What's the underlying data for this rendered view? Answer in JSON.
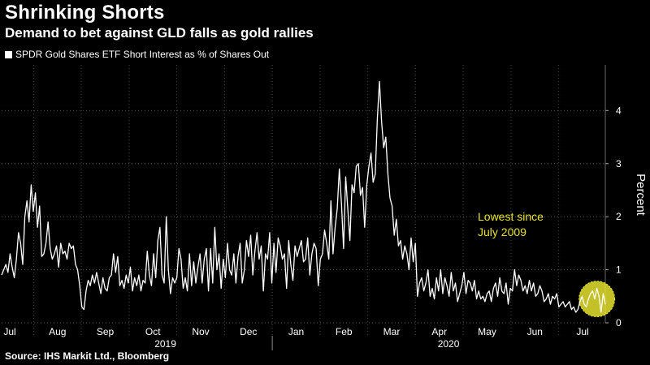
{
  "header": {
    "title": "Shrinking Shorts",
    "subtitle": "Demand to bet against GLD falls as gold rallies"
  },
  "footer": {
    "source": "Source: IHS Markit Ltd., Bloomberg"
  },
  "colors": {
    "background": "#000000",
    "line": "#ffffff",
    "highlight": "#e6e22e"
  },
  "chart_data": {
    "type": "line",
    "title": "Shrinking Shorts",
    "subtitle": "Demand to bet against GLD falls as gold rallies",
    "ylabel": "Percent",
    "xlabel": "",
    "ylim": [
      0,
      4.8
    ],
    "yticks": [
      0,
      1,
      2,
      3,
      4
    ],
    "grid": true,
    "legend_position": "top-left",
    "x_tick_labels": [
      "Jul",
      "Aug",
      "Sep",
      "Oct",
      "Nov",
      "Dec",
      "Jan",
      "Feb",
      "Mar",
      "Apr",
      "May",
      "Jun",
      "Jul"
    ],
    "x_year_labels": [
      "2019",
      "2020"
    ],
    "annotation": "Lowest since\nJuly 2009",
    "annotation_lines": [
      "Lowest since",
      "July 2009"
    ],
    "series": [
      {
        "name": "SPDR Gold Shares ETF Short Interest as % of Shares Out",
        "values": [
          0.9,
          1.0,
          1.1,
          0.95,
          1.3,
          1.05,
          0.85,
          1.2,
          1.7,
          1.5,
          1.1,
          2.0,
          2.3,
          1.9,
          2.6,
          2.1,
          2.45,
          1.8,
          2.2,
          1.25,
          1.3,
          1.5,
          1.9,
          1.4,
          1.2,
          1.3,
          1.45,
          1.05,
          1.5,
          1.3,
          1.35,
          1.2,
          1.5,
          1.4,
          1.45,
          1.1,
          1.0,
          0.7,
          0.3,
          0.25,
          0.6,
          0.8,
          0.7,
          0.9,
          0.75,
          0.95,
          0.75,
          0.55,
          0.85,
          0.65,
          0.6,
          0.85,
          0.9,
          1.3,
          0.95,
          1.25,
          0.7,
          0.8,
          0.65,
          0.9,
          0.75,
          1.05,
          0.6,
          0.85,
          0.7,
          0.9,
          0.6,
          0.8,
          0.75,
          1.35,
          0.9,
          0.7,
          1.3,
          0.85,
          1.55,
          1.8,
          0.9,
          0.75,
          2.0,
          1.0,
          0.55,
          0.85,
          0.75,
          0.85,
          1.4,
          1.2,
          0.65,
          0.85,
          0.6,
          1.3,
          0.7,
          1.15,
          0.75,
          1.05,
          1.3,
          0.75,
          1.2,
          1.4,
          0.6,
          1.4,
          0.75,
          1.8,
          1.0,
          1.3,
          0.65,
          1.2,
          0.85,
          1.5,
          1.0,
          0.9,
          1.3,
          0.75,
          1.25,
          1.5,
          0.75,
          1.0,
          1.55,
          1.25,
          1.65,
          0.9,
          1.35,
          1.7,
          1.2,
          1.45,
          0.6,
          1.3,
          1.2,
          1.7,
          0.75,
          1.5,
          0.95,
          1.6,
          1.45,
          1.2,
          1.3,
          0.65,
          1.55,
          1.1,
          0.8,
          1.45,
          1.25,
          1.4,
          1.55,
          1.15,
          1.2,
          1.6,
          0.9,
          1.3,
          1.5,
          1.4,
          0.7,
          1.2,
          1.3,
          1.75,
          1.5,
          1.2,
          2.3,
          1.3,
          1.8,
          2.15,
          2.9,
          2.25,
          1.4,
          2.75,
          2.15,
          1.55,
          2.6,
          2.45,
          2.95,
          3.0,
          2.4,
          2.55,
          1.8,
          2.6,
          2.95,
          3.2,
          2.65,
          2.8,
          3.85,
          4.55,
          3.8,
          3.3,
          3.5,
          2.8,
          2.35,
          2.2,
          1.65,
          1.95,
          1.45,
          1.55,
          1.2,
          1.45,
          1.3,
          1.0,
          1.6,
          1.15,
          1.5,
          0.5,
          0.75,
          0.85,
          0.6,
          0.75,
          1.0,
          0.5,
          0.65,
          0.45,
          0.85,
          0.6,
          1.0,
          0.55,
          0.85,
          0.7,
          0.5,
          0.95,
          0.6,
          0.75,
          0.4,
          0.55,
          0.7,
          0.95,
          0.55,
          0.8,
          0.75,
          0.6,
          0.8,
          0.45,
          0.6,
          0.45,
          0.5,
          0.4,
          0.55,
          0.6,
          0.4,
          0.65,
          0.75,
          0.5,
          0.85,
          0.6,
          0.55,
          0.75,
          0.35,
          0.65,
          0.6,
          1.0,
          0.7,
          0.9,
          0.8,
          0.6,
          0.7,
          0.55,
          0.8,
          0.6,
          0.75,
          0.5,
          0.55,
          0.7,
          0.6,
          0.4,
          0.45,
          0.55,
          0.35,
          0.5,
          0.45,
          0.55,
          0.3,
          0.35,
          0.4,
          0.3,
          0.35,
          0.4,
          0.25,
          0.3,
          0.2,
          0.25,
          0.4,
          0.5,
          0.35,
          0.3,
          0.45,
          0.55,
          0.6,
          0.45,
          0.65,
          0.5,
          0.2,
          0.55,
          0.35
        ]
      }
    ]
  }
}
